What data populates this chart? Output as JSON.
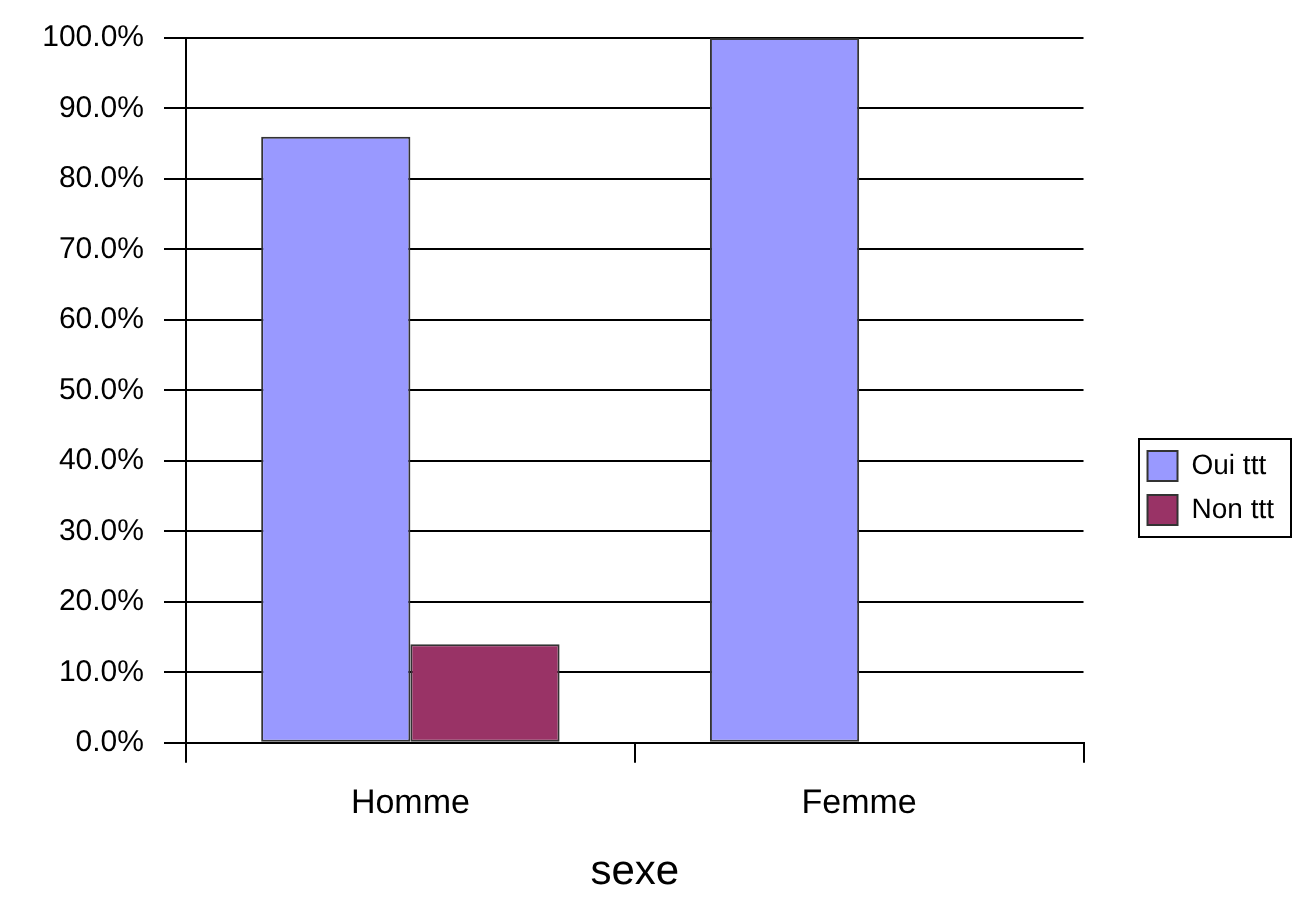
{
  "chart_data": {
    "type": "bar",
    "xlabel": "sexe",
    "categories": [
      "Homme",
      "Femme"
    ],
    "series": [
      {
        "name": "Oui ttt",
        "color": "#9999ff",
        "values": [
          86,
          100
        ]
      },
      {
        "name": "Non ttt",
        "color": "#993366",
        "values": [
          14,
          0
        ]
      }
    ],
    "ylim": [
      0,
      100
    ],
    "yticks": [
      {
        "value": 0,
        "label": "0.0%"
      },
      {
        "value": 10,
        "label": "10.0%"
      },
      {
        "value": 20,
        "label": "20.0%"
      },
      {
        "value": 30,
        "label": "30.0%"
      },
      {
        "value": 40,
        "label": "40.0%"
      },
      {
        "value": 50,
        "label": "50.0%"
      },
      {
        "value": 60,
        "label": "60.0%"
      },
      {
        "value": 70,
        "label": "70.0%"
      },
      {
        "value": 80,
        "label": "80.0%"
      },
      {
        "value": 90,
        "label": "90.0%"
      },
      {
        "value": 100,
        "label": "100.0%"
      }
    ],
    "grid": "y",
    "legend": "right"
  }
}
